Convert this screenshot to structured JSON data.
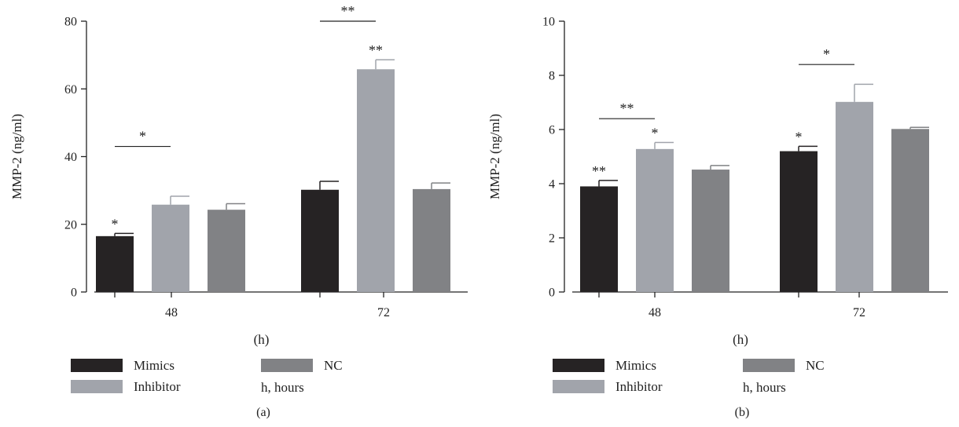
{
  "chart_data": [
    {
      "type": "bar",
      "panel_label": "(a)",
      "ylabel": "MMP-2 (ng/ml)",
      "xlabel": "(h)",
      "ylim": [
        0,
        80
      ],
      "yticks": [
        "0",
        "20",
        "40",
        "60",
        "80"
      ],
      "categories": [
        "48",
        "72"
      ],
      "series": [
        {
          "name": "Mimics",
          "values": [
            16.5,
            30.2
          ],
          "errors": [
            0.8,
            2.5
          ],
          "sig": [
            "*",
            ""
          ]
        },
        {
          "name": "Inhibitor",
          "values": [
            25.8,
            65.8
          ],
          "errors": [
            2.5,
            2.8
          ],
          "sig": [
            "",
            "**"
          ]
        },
        {
          "name": "NC",
          "values": [
            24.3,
            30.4
          ],
          "errors": [
            1.8,
            1.8
          ],
          "sig": [
            "",
            ""
          ]
        }
      ],
      "brackets": [
        {
          "from": [
            0,
            0
          ],
          "to": [
            1,
            0
          ],
          "y": 43,
          "label": "*"
        },
        {
          "from": [
            0,
            1
          ],
          "to": [
            1,
            1
          ],
          "y": 80,
          "label": "**"
        }
      ],
      "legend_extra": "h, hours"
    },
    {
      "type": "bar",
      "panel_label": "(b)",
      "ylabel": "MMP-2 (ng/ml)",
      "xlabel": "(h)",
      "ylim": [
        0,
        10
      ],
      "yticks": [
        "0",
        "2",
        "4",
        "6",
        "8",
        "10"
      ],
      "categories": [
        "48",
        "72"
      ],
      "series": [
        {
          "name": "Mimics",
          "values": [
            3.9,
            5.2
          ],
          "errors": [
            0.22,
            0.18
          ],
          "sig": [
            "**",
            "*"
          ]
        },
        {
          "name": "Inhibitor",
          "values": [
            5.28,
            7.02
          ],
          "errors": [
            0.24,
            0.65
          ],
          "sig": [
            "*",
            ""
          ]
        },
        {
          "name": "NC",
          "values": [
            4.52,
            6.02
          ],
          "errors": [
            0.15,
            0.06
          ],
          "sig": [
            "",
            ""
          ]
        }
      ],
      "brackets": [
        {
          "from": [
            0,
            0
          ],
          "to": [
            1,
            0
          ],
          "y": 6.4,
          "label": "**"
        },
        {
          "from": [
            0,
            1
          ],
          "to": [
            1,
            1
          ],
          "y": 8.4,
          "label": "*"
        }
      ],
      "legend_extra": "h, hours"
    }
  ],
  "colors": {
    "Mimics": "#262324",
    "Inhibitor": "#a1a4ab",
    "NC": "#818285"
  }
}
